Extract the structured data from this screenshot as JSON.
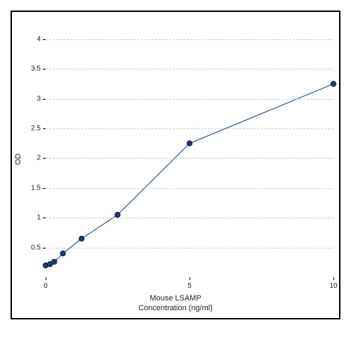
{
  "chart": {
    "type": "line",
    "title": "",
    "x_axis_title": "Mouse LSAMP",
    "x_axis_subtitle": "Concentration (ng/ml)",
    "y_axis_title": "OD",
    "background_color": "#ffffff",
    "border_color": "#000000",
    "grid_color": "#cccccc",
    "grid_style": "dashed",
    "line_color": "#2e5a8f",
    "marker_color": "#1f3a6b",
    "marker_outline": "#0d1d38",
    "line_width": 1.2,
    "marker_radius": 3.8,
    "xlim": [
      0,
      10
    ],
    "ylim": [
      0,
      4.4
    ],
    "x_ticks": [
      0,
      5,
      10
    ],
    "y_ticks": [
      0.5,
      1,
      1.5,
      2,
      2.5,
      3,
      3.5,
      4
    ],
    "gridlines": [
      0.5,
      1,
      1.5,
      2,
      2.5,
      3,
      3.5,
      4
    ],
    "x_tick_labels": [
      "0",
      "5",
      "10"
    ],
    "y_tick_labels": [
      "0.5",
      "1",
      "1.5",
      "2",
      "2.5",
      "3",
      "3.5",
      "4"
    ],
    "data": [
      {
        "x": 0,
        "y": 0.2
      },
      {
        "x": 0.15,
        "y": 0.22
      },
      {
        "x": 0.3,
        "y": 0.26
      },
      {
        "x": 0.6,
        "y": 0.4
      },
      {
        "x": 1.25,
        "y": 0.65
      },
      {
        "x": 2.5,
        "y": 1.05
      },
      {
        "x": 5.0,
        "y": 2.25
      },
      {
        "x": 10.0,
        "y": 3.25
      }
    ],
    "tick_fontsize": 10,
    "label_fontsize": 11
  }
}
